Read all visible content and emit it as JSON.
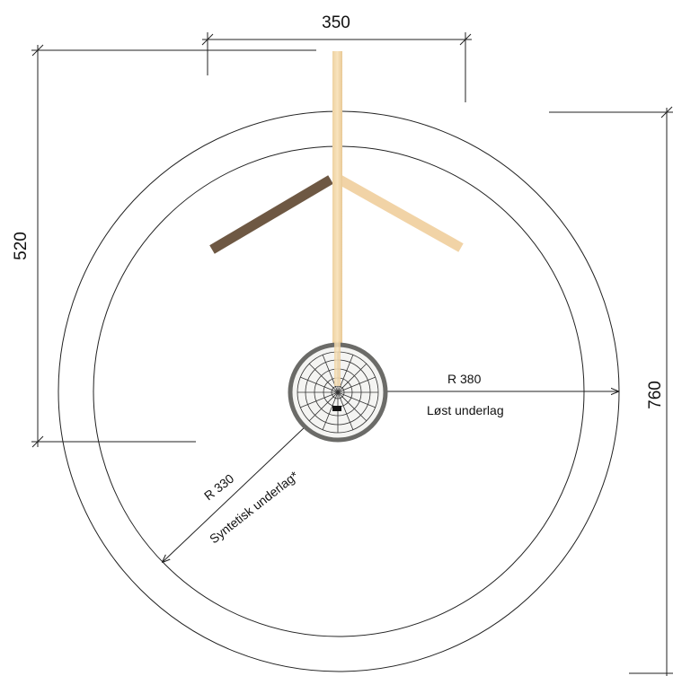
{
  "dimensions": {
    "top_width": "350",
    "left_height": "520",
    "right_height": "760"
  },
  "labels": {
    "outer_radius": "R 380",
    "outer_surface": "Løst underlag",
    "inner_radius": "R 330",
    "inner_surface": "Syntetisk underlag*"
  },
  "colors": {
    "line": "#222222",
    "post_light": "#f3d9ad",
    "arm_dark": "#6e5843",
    "arm_light": "#f1d3a6",
    "nest_ring": "#6b6b68"
  }
}
